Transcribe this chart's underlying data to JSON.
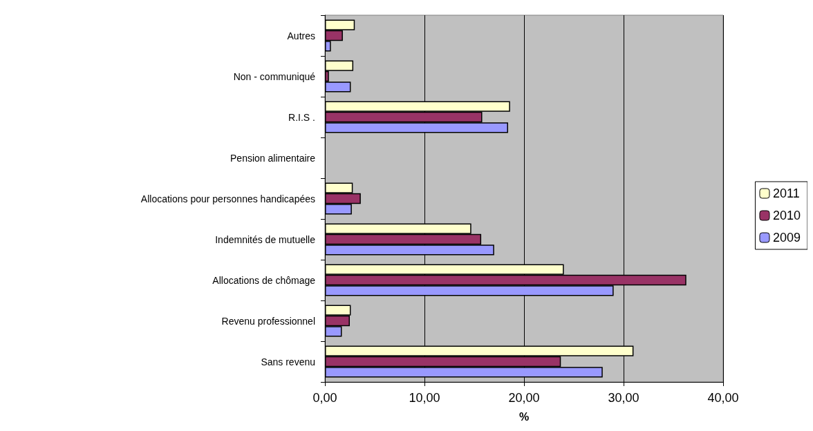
{
  "chart_data": {
    "type": "bar",
    "orientation": "horizontal",
    "xlabel": "%",
    "categories": [
      "Autres",
      "Non - communiqué",
      "R.I.S .",
      "Pension alimentaire",
      "Allocations pour personnes handicapées",
      "Indemnités de mutuelle",
      "Allocations de chômage",
      "Revenu professionnel",
      "Sans revenu"
    ],
    "series": [
      {
        "name": "2011",
        "color": "#ffffcc",
        "values": [
          3.0,
          2.85,
          18.6,
          null,
          2.8,
          14.7,
          24.0,
          2.6,
          31.0
        ]
      },
      {
        "name": "2010",
        "color": "#993366",
        "values": [
          1.8,
          0.4,
          15.8,
          null,
          3.6,
          15.7,
          36.3,
          2.5,
          23.7
        ]
      },
      {
        "name": "2009",
        "color": "#9999ff",
        "values": [
          0.6,
          2.6,
          18.4,
          null,
          2.7,
          17.0,
          29.0,
          1.7,
          27.9
        ]
      }
    ],
    "xlim": [
      0,
      40
    ],
    "xticks": [
      {
        "value": 0,
        "label": "0,00"
      },
      {
        "value": 10,
        "label": "10,00"
      },
      {
        "value": 20,
        "label": "20,00"
      },
      {
        "value": 30,
        "label": "30,00"
      },
      {
        "value": 40,
        "label": "40,00"
      }
    ],
    "grid": "x",
    "legend": "right"
  }
}
